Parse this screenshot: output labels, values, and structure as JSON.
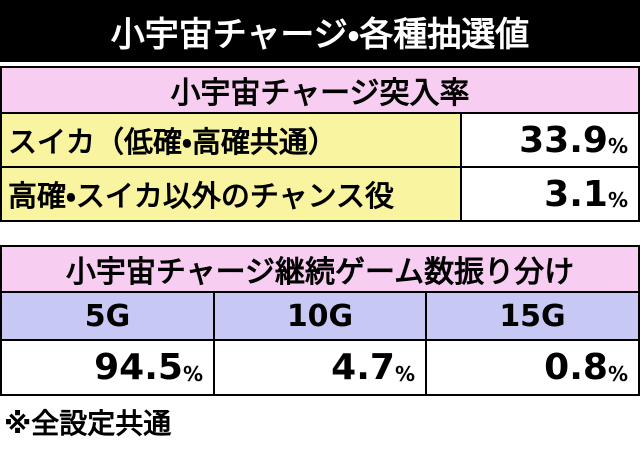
{
  "header": {
    "title": "小宇宙チャージ・各種抽選値"
  },
  "table1": {
    "title": "小宇宙チャージ突入率",
    "rows": [
      {
        "label": "スイカ（低確・高確共通）",
        "value": "33.9",
        "unit": "%"
      },
      {
        "label": "高確・スイカ以外のチャンス役",
        "value": "3.1",
        "unit": "%"
      }
    ]
  },
  "table2": {
    "title": "小宇宙チャージ継続ゲーム数振り分け",
    "columns": [
      "5G",
      "10G",
      "15G"
    ],
    "values": [
      {
        "value": "94.5",
        "unit": "%"
      },
      {
        "value": "4.7",
        "unit": "%"
      },
      {
        "value": "0.8",
        "unit": "%"
      }
    ]
  },
  "footnote": "※全設定共通"
}
